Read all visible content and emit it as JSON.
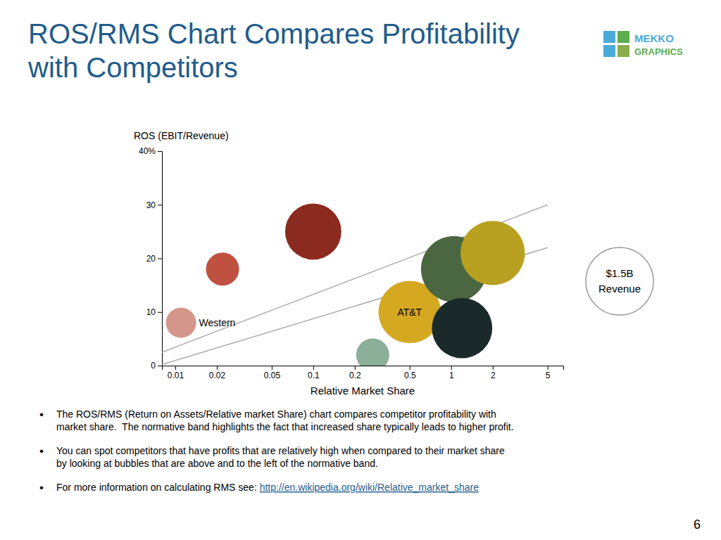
{
  "chart_data": {
    "type": "bubble",
    "title": {
      "text": "ROS/RMS Chart Compares Profitability\nwith Competitors",
      "color": "#1F5C8B"
    },
    "xlabel": "Relative Market Share",
    "ylabel": "ROS (EBIT/Revenue)",
    "log": "x",
    "grid": false,
    "xlim": [
      0.008,
      6.5
    ],
    "ylim": [
      0,
      40
    ],
    "xticks": [
      0.01,
      0.02,
      0.05,
      0.1,
      0.2,
      0.5,
      1,
      2,
      5
    ],
    "yticks": [
      0,
      10,
      20,
      30,
      {
        "value": 40,
        "label": "40%"
      }
    ],
    "x": [
      0.011,
      0.022,
      0.1,
      0.27,
      0.5,
      1.05,
      2.0,
      1.2
    ],
    "y": [
      8,
      18,
      25,
      2,
      10,
      18,
      21,
      7
    ],
    "sizes": [
      750,
      900,
      2600,
      900,
      3200,
      3600,
      3400,
      3000
    ],
    "colors": [
      "#D4968A",
      "#C05040",
      "#8B2A1E",
      "#8BAF98",
      "#D4A820",
      "#4A6741",
      "#B8A020",
      "#1A2A2A"
    ],
    "labels": [
      "Western",
      null,
      null,
      null,
      "AT&T",
      null,
      null,
      null
    ],
    "band_lines": [
      {
        "x": [
          0.008,
          5.0
        ],
        "y": [
          2.5,
          30
        ],
        "color": "#AAAAAA"
      },
      {
        "x": [
          0.008,
          5.0
        ],
        "y": [
          0.2,
          22
        ],
        "color": "#AAAAAA"
      }
    ],
    "size_key": {
      "text": "$1.5B\nRevenue",
      "color": "#999999"
    },
    "bullet_mark": "•",
    "bullets": [
      {
        "text": "The ROS/RMS (Return on Assets/Relative market Share) chart compares competitor profitability with\nmarket share.  The normative band highlights the fact that increased share typically leads to higher profit."
      },
      {
        "text": "You can spot competitors that have profits that are relatively high when compared to their market share\nby looking at bubbles that are above and to the left of the normative band."
      },
      {
        "text": "For more information on calculating RMS see: ",
        "link": {
          "text": "http://en.wikipedia.org/wiki/Relative_market_share",
          "color": "#1F5C8B"
        }
      }
    ],
    "page_number": "6",
    "logo": {
      "colors": [
        "#4AABDB",
        "#5BAD4E",
        "#4AABDB",
        "#8BAD4E"
      ],
      "texts": [
        {
          "text": "MEKKO",
          "color": "#4AABDB"
        },
        {
          "text": "GRAPHICS",
          "color": "#5BAD4E"
        }
      ]
    }
  }
}
